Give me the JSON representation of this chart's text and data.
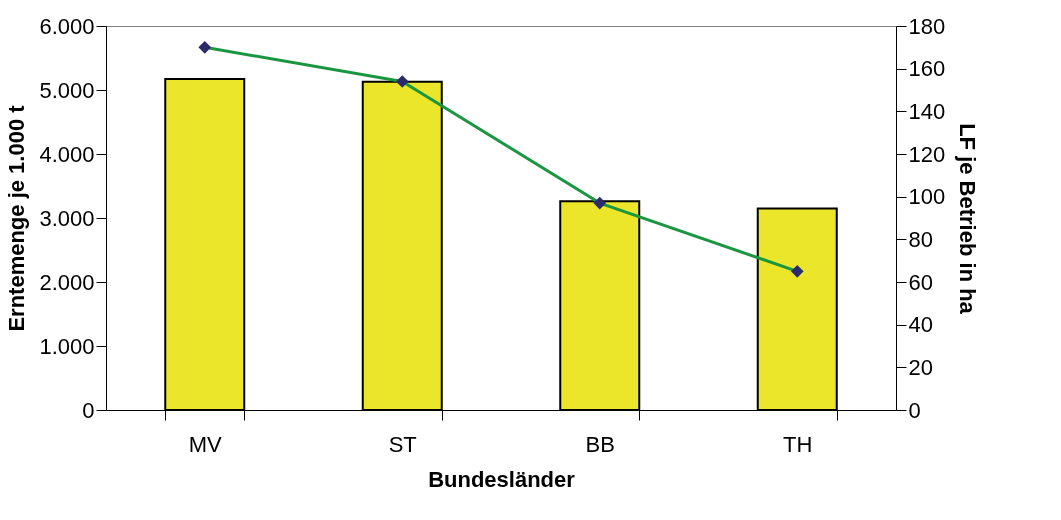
{
  "chart_data": {
    "type": "bar",
    "xlabel": "Bundesländer",
    "ylabel": "Erntemenge je 1.000 t",
    "y2label": "LF je Betrieb in ha",
    "categories": [
      "MV",
      "ST",
      "BB",
      "TH"
    ],
    "series": [
      {
        "color": "#ebe62a",
        "values": [
          5170,
          5130,
          3260,
          3150
        ]
      },
      {
        "type": "line",
        "axis": "y2",
        "color": "#1a9641",
        "marker": "diamond",
        "values": [
          170,
          154,
          97,
          65
        ]
      }
    ],
    "ylim": [
      0,
      6000
    ],
    "yticks": [
      0,
      {
        "value": 1000,
        "label": "1.000"
      },
      {
        "value": 2000,
        "label": "2.000"
      },
      {
        "value": 3000,
        "label": "3.000"
      },
      {
        "value": 4000,
        "label": "4.000"
      },
      {
        "value": 5000,
        "label": "5.000"
      },
      {
        "value": 6000,
        "label": "6.000"
      }
    ],
    "y2lim": [
      0,
      180
    ],
    "y2ticks": [
      0,
      20,
      40,
      60,
      80,
      100,
      120,
      140,
      160,
      180
    ],
    "grid": false
  }
}
